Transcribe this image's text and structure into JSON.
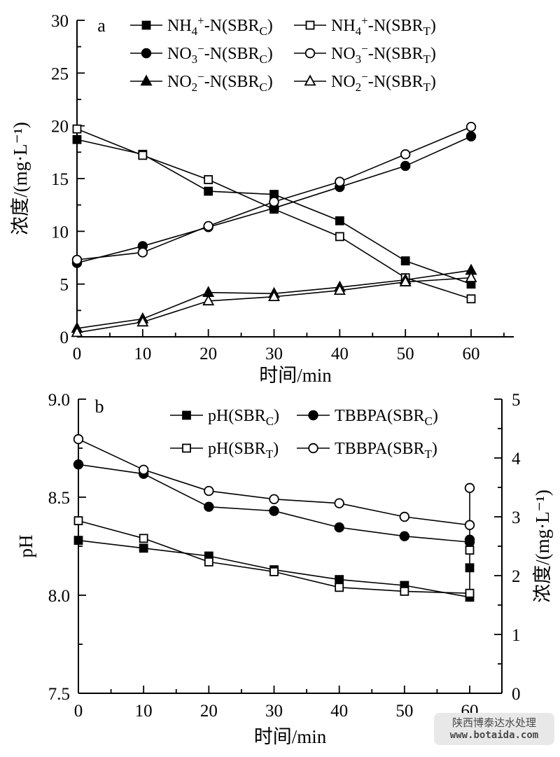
{
  "page": {
    "background": "#ffffff",
    "ink_color": "#000000"
  },
  "watermark": {
    "line1": "陕西博泰达水处理",
    "line2": "www.botaida.com",
    "bg": "#e8e8e8",
    "text_color": "#4a4a4a"
  },
  "chart_data": [
    {
      "id": "a",
      "type": "line",
      "panel_label": "a",
      "xlabel": "时间/min",
      "ylabel": "浓度/(mg·L⁻¹)",
      "xlim": [
        0,
        66.5
      ],
      "ylim": [
        0,
        30
      ],
      "x": [
        0,
        10,
        20,
        30,
        40,
        50,
        60
      ],
      "xticks": [
        0,
        10,
        20,
        30,
        40,
        50,
        60
      ],
      "xticks_minor": [
        5,
        15,
        25,
        35,
        45,
        55,
        65
      ],
      "yticks": [
        0,
        5,
        10,
        15,
        20,
        25,
        30
      ],
      "yticks_minor": [
        2.5,
        7.5,
        12.5,
        17.5,
        22.5,
        27.5
      ],
      "grid": false,
      "legend_position": "top-inside-two-columns",
      "series": [
        {
          "name": "NH4+-N(SBRC)",
          "marker": "square-filled",
          "label_parts": [
            [
              "t",
              "NH"
            ],
            [
              "sub",
              "4"
            ],
            [
              "sup",
              "+"
            ],
            [
              "t",
              "-N(SBR"
            ],
            [
              "sub",
              "C"
            ],
            [
              "t",
              ")"
            ]
          ],
          "values": [
            18.7,
            17.3,
            13.8,
            13.5,
            11.0,
            7.2,
            5.0
          ]
        },
        {
          "name": "NH4+-N(SBRT)",
          "marker": "square-open",
          "label_parts": [
            [
              "t",
              "NH"
            ],
            [
              "sub",
              "4"
            ],
            [
              "sup",
              "+"
            ],
            [
              "t",
              "-N(SBR"
            ],
            [
              "sub",
              "T"
            ],
            [
              "t",
              ")"
            ]
          ],
          "values": [
            19.7,
            17.2,
            14.9,
            12.1,
            9.5,
            5.6,
            3.6
          ]
        },
        {
          "name": "NO3--N(SBRC)",
          "marker": "circle-filled",
          "label_parts": [
            [
              "t",
              "NO"
            ],
            [
              "sub",
              "3"
            ],
            [
              "sup",
              "−"
            ],
            [
              "t",
              "-N(SBR"
            ],
            [
              "sub",
              "C"
            ],
            [
              "t",
              ")"
            ]
          ],
          "values": [
            7.0,
            8.6,
            10.4,
            12.2,
            14.2,
            16.2,
            19.0
          ]
        },
        {
          "name": "NO3--N(SBRT)",
          "marker": "circle-open",
          "label_parts": [
            [
              "t",
              "NO"
            ],
            [
              "sub",
              "3"
            ],
            [
              "sup",
              "−"
            ],
            [
              "t",
              "-N(SBR"
            ],
            [
              "sub",
              "T"
            ],
            [
              "t",
              ")"
            ]
          ],
          "values": [
            7.3,
            8.0,
            10.5,
            12.8,
            14.7,
            17.3,
            19.9
          ]
        },
        {
          "name": "NO2--N(SBRC)",
          "marker": "triangle-filled",
          "label_parts": [
            [
              "t",
              "NO"
            ],
            [
              "sub",
              "2"
            ],
            [
              "sup",
              "−"
            ],
            [
              "t",
              "-N(SBR"
            ],
            [
              "sub",
              "C"
            ],
            [
              "t",
              ")"
            ]
          ],
          "values": [
            0.8,
            1.7,
            4.2,
            4.1,
            4.7,
            5.4,
            6.3
          ]
        },
        {
          "name": "NO2--N(SBRT)",
          "marker": "triangle-open",
          "label_parts": [
            [
              "t",
              "NO"
            ],
            [
              "sub",
              "2"
            ],
            [
              "sup",
              "−"
            ],
            [
              "t",
              "-N(SBR"
            ],
            [
              "sub",
              "T"
            ],
            [
              "t",
              ")"
            ]
          ],
          "values": [
            0.4,
            1.4,
            3.4,
            3.8,
            4.4,
            5.2,
            5.6
          ]
        }
      ]
    },
    {
      "id": "b",
      "type": "line",
      "panel_label": "b",
      "xlabel": "时间/min",
      "ylabel_left": "pH",
      "ylabel_right": "浓度/(mg·L⁻¹)",
      "xlim": [
        0,
        65
      ],
      "ylim_left": [
        7.5,
        9.0
      ],
      "ylim_right": [
        0,
        5
      ],
      "x": [
        0,
        10,
        20,
        30,
        40,
        50,
        60
      ],
      "xticks": [
        0,
        10,
        20,
        30,
        40,
        50,
        60
      ],
      "xticks_minor": [
        5,
        15,
        25,
        35,
        45,
        55
      ],
      "yticks_left": [
        [
          7.5,
          "7.5"
        ],
        [
          8.0,
          "8.0"
        ],
        [
          8.5,
          "8.5"
        ],
        [
          9.0,
          "9.0"
        ]
      ],
      "yticks_left_minor": [
        7.75,
        8.25,
        8.75
      ],
      "yticks_right": [
        [
          0,
          "0"
        ],
        [
          1,
          "1"
        ],
        [
          2,
          "2"
        ],
        [
          3,
          "3"
        ],
        [
          4,
          "4"
        ],
        [
          5,
          "5"
        ]
      ],
      "yticks_right_minor": [
        0.5,
        1.5,
        2.5,
        3.5,
        4.5
      ],
      "grid": false,
      "legend_position": "top-inside-two-columns",
      "series": [
        {
          "name": "pH(SBRC)",
          "marker": "square-filled",
          "axis": "left",
          "label_parts": [
            [
              "t",
              "pH(SBR"
            ],
            [
              "sub",
              "C"
            ],
            [
              "t",
              ")"
            ]
          ],
          "values": [
            8.28,
            8.24,
            8.2,
            8.13,
            8.08,
            8.05,
            7.99
          ]
        },
        {
          "name": "pH(SBRT)",
          "marker": "square-open",
          "axis": "left",
          "label_parts": [
            [
              "t",
              "pH(SBR"
            ],
            [
              "sub",
              "T"
            ],
            [
              "t",
              ")"
            ]
          ],
          "values": [
            8.38,
            8.29,
            8.17,
            8.12,
            8.04,
            8.02,
            8.01
          ]
        },
        {
          "name": "TBBPA(SBRC)",
          "marker": "circle-filled",
          "axis": "right",
          "label_parts": [
            [
              "t",
              "TBBPA(SBR"
            ],
            [
              "sub",
              "C"
            ],
            [
              "t",
              ")"
            ]
          ],
          "values": [
            3.89,
            3.73,
            3.17,
            3.1,
            2.82,
            2.67,
            2.57
          ]
        },
        {
          "name": "TBBPA(SBRT)",
          "marker": "circle-open",
          "axis": "right",
          "label_parts": [
            [
              "t",
              "TBBPA(SBR"
            ],
            [
              "sub",
              "T"
            ],
            [
              "t",
              ")"
            ]
          ],
          "values": [
            4.32,
            3.8,
            3.44,
            3.3,
            3.23,
            3.0,
            2.86
          ]
        }
      ],
      "extra_points_at_60min": [
        {
          "marker": "circle-open",
          "axis": "right",
          "x": 60,
          "value": 3.49
        },
        {
          "marker": "circle-filled",
          "axis": "right",
          "x": 60,
          "value": 2.61
        },
        {
          "marker": "square-open",
          "axis": "left",
          "x": 60,
          "value": 8.23
        },
        {
          "marker": "square-filled",
          "axis": "left",
          "x": 60,
          "value": 8.14
        }
      ],
      "connector": {
        "x": 60,
        "top_axis": "right",
        "top_value": 3.49,
        "bottom_axis": "left",
        "bottom_value": 7.99
      }
    }
  ]
}
